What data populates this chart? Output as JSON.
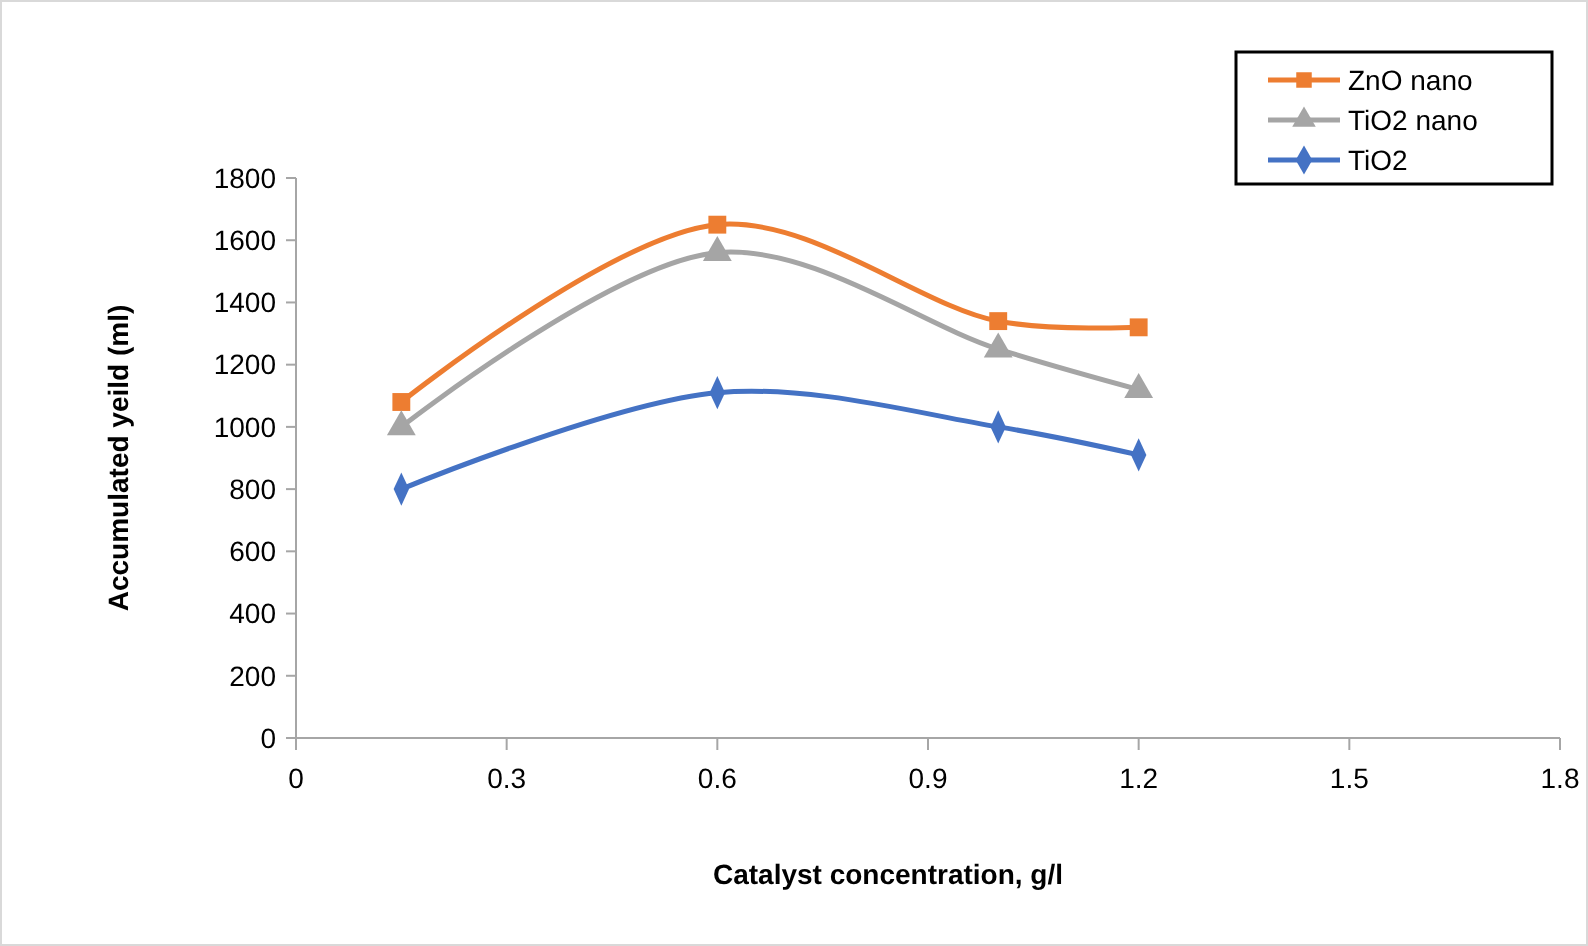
{
  "chart_data": {
    "type": "line",
    "xlabel": "Catalyst concentration, g/l",
    "ylabel": "Accumulated yeild (ml)",
    "x": [
      0.15,
      0.6,
      1.0,
      1.2
    ],
    "series": [
      {
        "name": "ZnO nano",
        "color": "#ed7d31",
        "marker": "square",
        "values": [
          1080,
          1650,
          1340,
          1320
        ]
      },
      {
        "name": "TiO2 nano",
        "color": "#a5a5a5",
        "marker": "triangle",
        "values": [
          1000,
          1560,
          1250,
          1120
        ]
      },
      {
        "name": "TiO2",
        "color": "#4472c4",
        "marker": "diamond",
        "values": [
          800,
          1110,
          1000,
          910
        ]
      }
    ],
    "xlim": [
      0,
      1.8
    ],
    "xticks": [
      0,
      0.3,
      0.6,
      0.9,
      1.2,
      1.5,
      1.8
    ],
    "ylim": [
      0,
      1800
    ],
    "yticks": [
      0,
      200,
      400,
      600,
      800,
      1000,
      1200,
      1400,
      1600,
      1800
    ],
    "grid": false,
    "legend": "top right",
    "line_style": "solid"
  }
}
